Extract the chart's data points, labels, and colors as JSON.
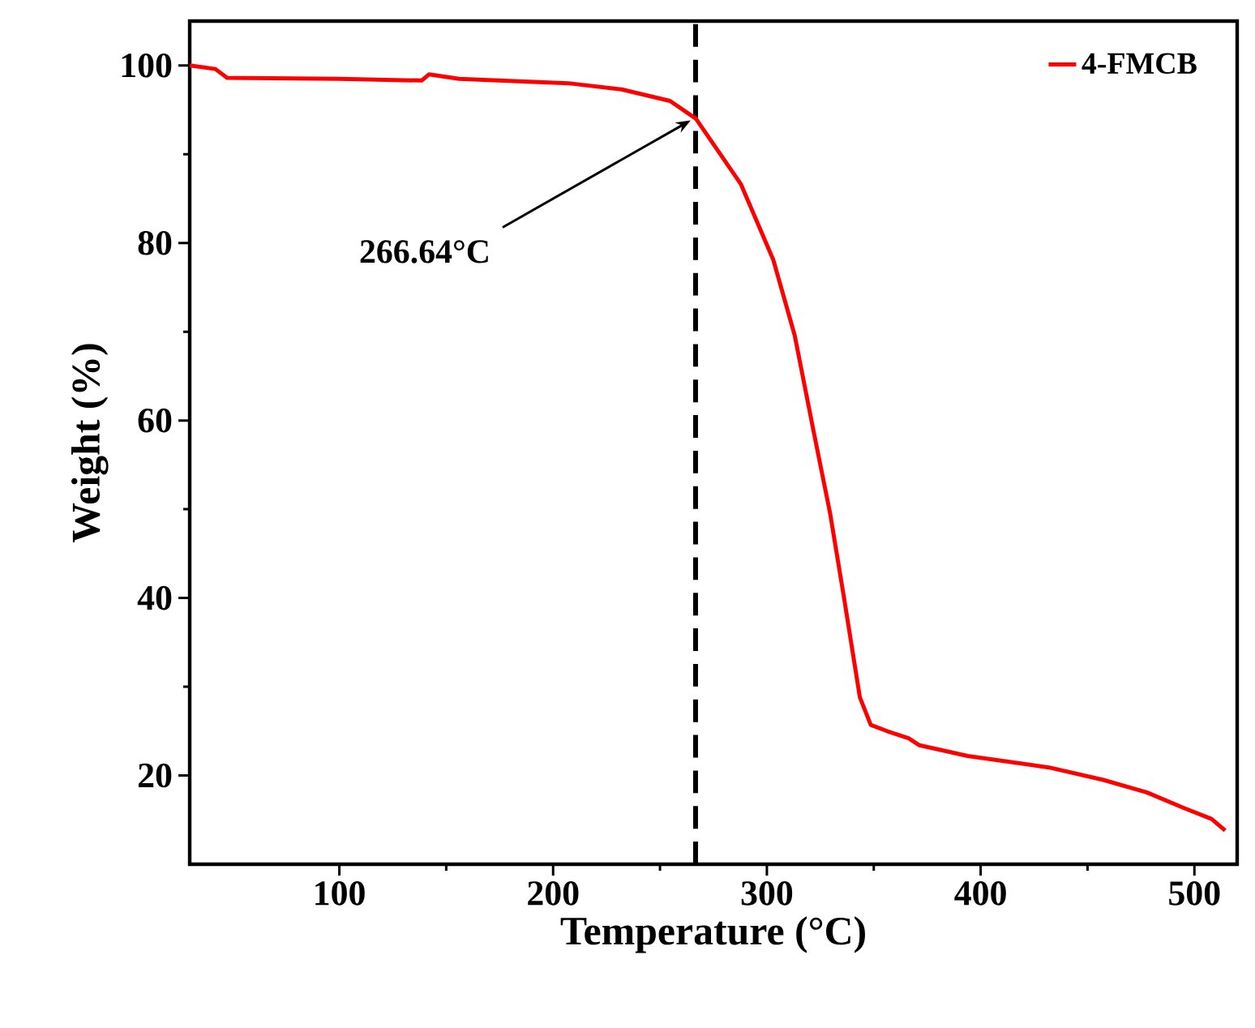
{
  "chart_data": {
    "type": "line",
    "xlabel": "Temperature (°C)",
    "ylabel": "Weight (%)",
    "xlim": [
      30,
      520
    ],
    "xticks": [
      100,
      200,
      300,
      400,
      500
    ],
    "ylim": [
      10,
      105
    ],
    "yticks": [
      20,
      40,
      60,
      80,
      100
    ],
    "grid": false,
    "legend": "top right",
    "marker": "none",
    "line_style": "solid",
    "series": [
      {
        "name": "4-FMCB",
        "color": "#ff0000",
        "x": [
          30,
          42,
          47.5,
          100,
          138.5,
          142,
          156,
          207,
          232,
          254.7,
          266.8,
          287.9,
          303,
          313,
          322,
          329.6,
          335.9,
          343.5,
          348.6,
          356.2,
          366.3,
          371.4,
          394,
          432,
          457.4,
          477.7,
          495.4,
          508,
          514.4
        ],
        "values": [
          100,
          99.6,
          98.6,
          98.5,
          98.3,
          99.0,
          98.5,
          98.0,
          97.3,
          96.0,
          94.0,
          86.6,
          78.1,
          69.6,
          58.6,
          49.5,
          40.3,
          28.8,
          25.7,
          25.0,
          24.2,
          23.4,
          22.2,
          20.9,
          19.5,
          18.1,
          16.3,
          15.1,
          13.8
        ]
      }
    ],
    "ref_lines": [
      {
        "axis": "x",
        "value": 266.64,
        "color": "#000000",
        "line_style": "dashed"
      }
    ],
    "annotations": [
      {
        "text": "266.64°C",
        "x": 266.64,
        "y": 94
      }
    ]
  }
}
